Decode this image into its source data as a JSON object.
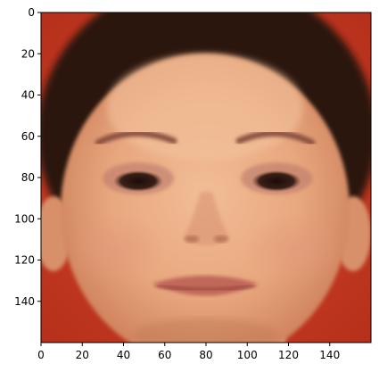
{
  "axes": {
    "x_ticks": [
      "0",
      "20",
      "40",
      "60",
      "80",
      "100",
      "120",
      "140"
    ],
    "y_ticks": [
      "0",
      "20",
      "40",
      "60",
      "80",
      "100",
      "120",
      "140"
    ],
    "x_range": [
      0,
      160
    ],
    "y_range": [
      0,
      160
    ],
    "y_inverted": true
  },
  "image": {
    "subject": "close-up photo of a smiling woman's face",
    "colors": {
      "background": "#c33a22",
      "skin": "#e8a77e",
      "hair": "#2a140c",
      "lips": "#c0685a"
    }
  }
}
